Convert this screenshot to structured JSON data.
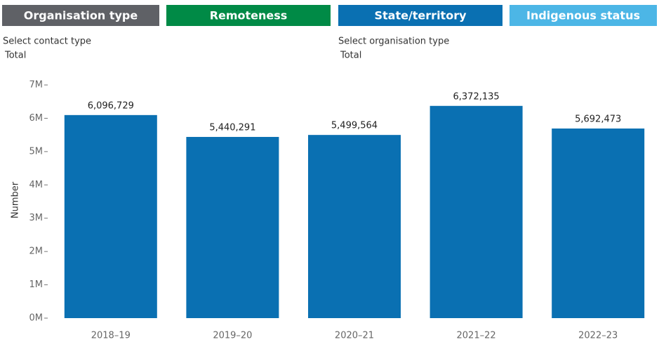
{
  "tabs": [
    "Organisation type",
    "Remoteness",
    "State/territory",
    "Indigenous status"
  ],
  "filters": [
    {
      "label": "Select contact type",
      "value": "Total"
    },
    {
      "label": "Select organisation type",
      "value": "Total"
    }
  ],
  "chart_data": {
    "type": "bar",
    "y_label": "Number",
    "categories": [
      "2018–19",
      "2019–20",
      "2020–21",
      "2021–22",
      "2022–23"
    ],
    "values": [
      6096729,
      5440291,
      5499564,
      6372135,
      5692473
    ],
    "value_labels": [
      "6,096,729",
      "5,440,291",
      "5,499,564",
      "6,372,135",
      "5,692,473"
    ],
    "color": "#0a70b2",
    "ylim": [
      0,
      7000000
    ],
    "yticks": [
      {
        "value": 0,
        "label": "0M"
      },
      {
        "value": 1000000,
        "label": "1M"
      },
      {
        "value": 2000000,
        "label": "2M"
      },
      {
        "value": 3000000,
        "label": "3M"
      },
      {
        "value": 4000000,
        "label": "4M"
      },
      {
        "value": 5000000,
        "label": "5M"
      },
      {
        "value": 6000000,
        "label": "6M"
      },
      {
        "value": 7000000,
        "label": "7M"
      }
    ]
  }
}
